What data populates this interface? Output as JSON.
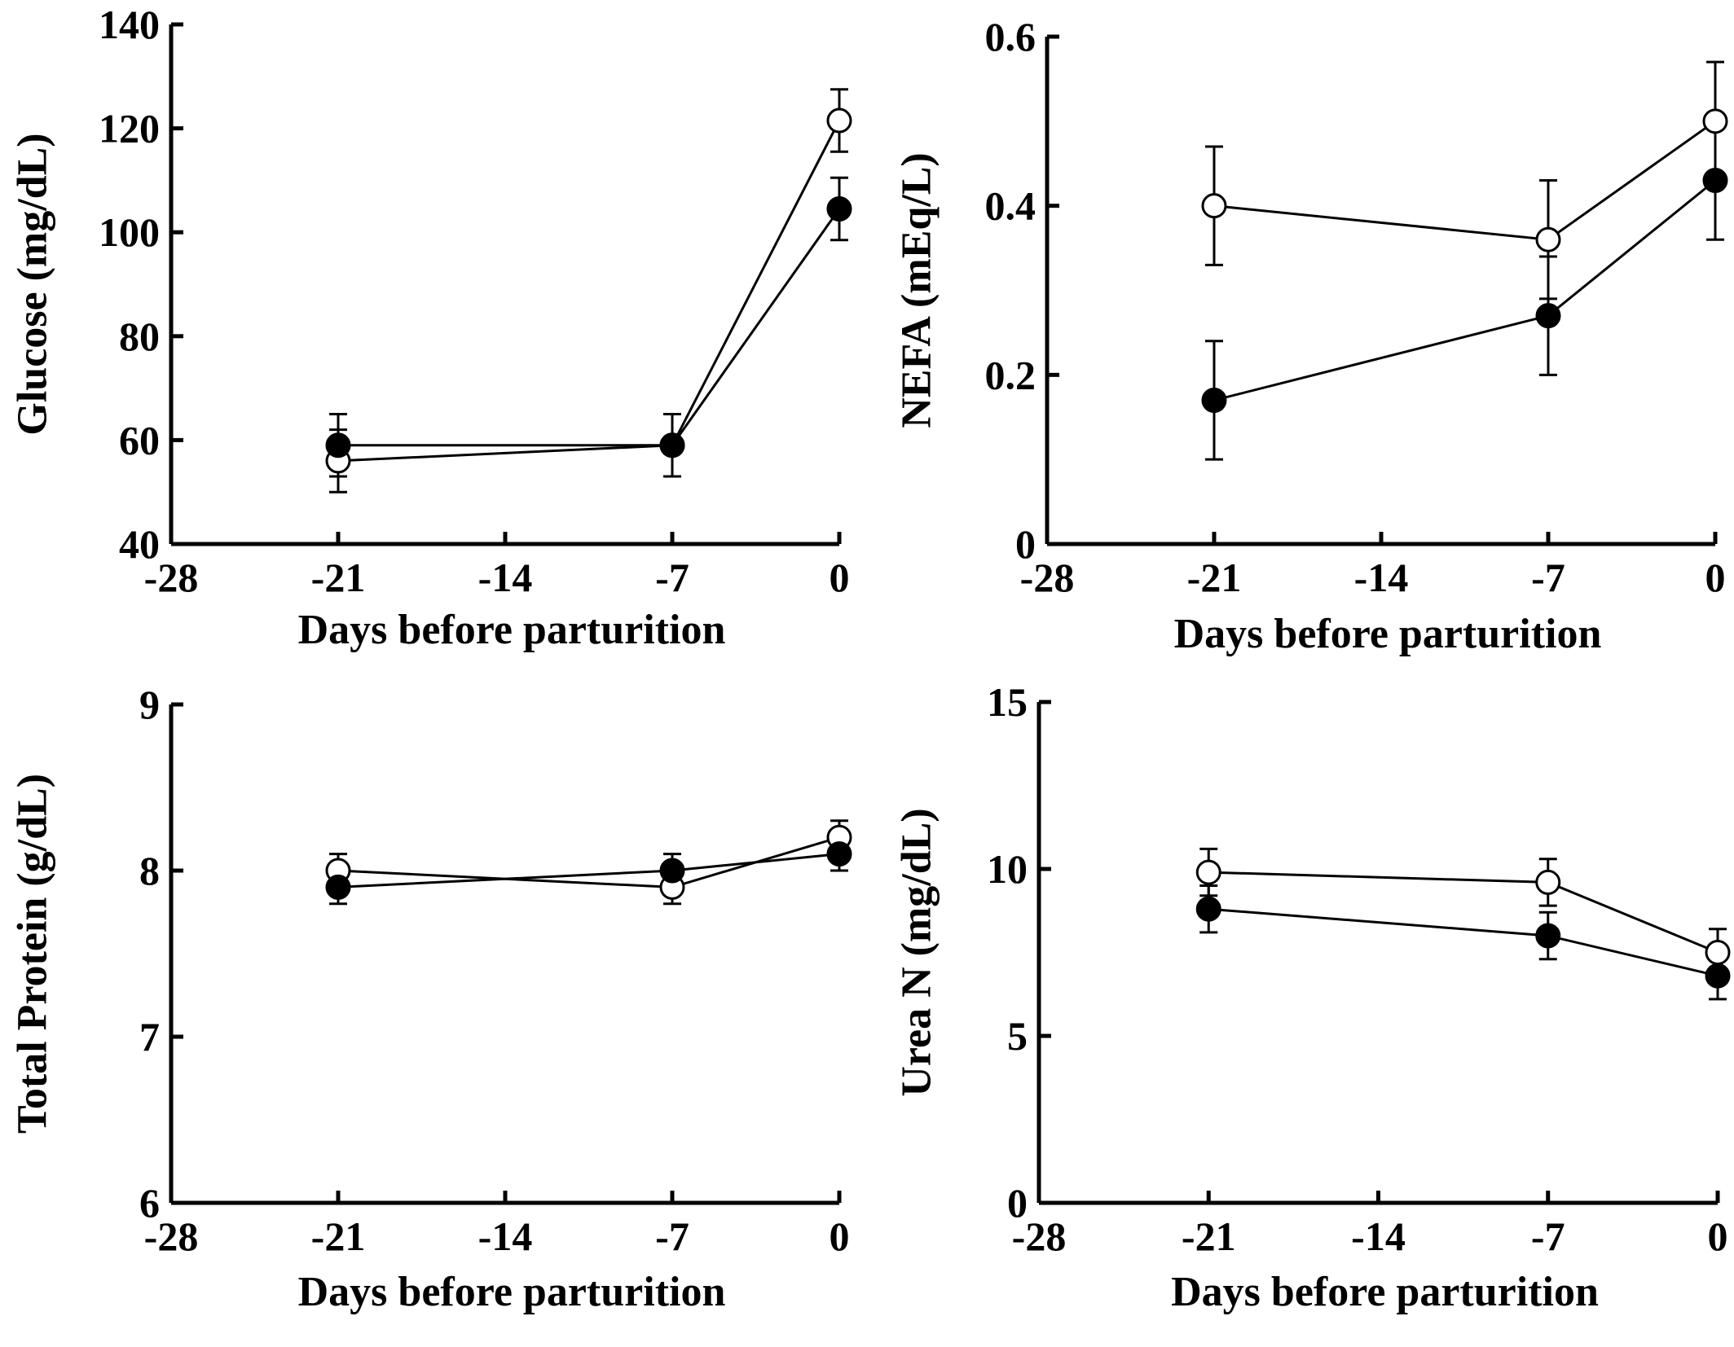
{
  "chart_data": [
    {
      "type": "line",
      "title": "",
      "xlabel": "Days before parturition",
      "ylabel": "Glucose (mg/dL)",
      "xlim": [
        -28,
        0
      ],
      "ylim": [
        40,
        140
      ],
      "xticks": [
        -28,
        -21,
        -14,
        -7,
        0
      ],
      "xtick_labels": [
        "-28",
        "-21",
        "-14",
        "-7",
        "0"
      ],
      "yticks": [
        40,
        60,
        80,
        100,
        120,
        140
      ],
      "ytick_labels": [
        "40",
        "60",
        "80",
        "100",
        "120",
        "140"
      ],
      "x": [
        -21,
        -7,
        0
      ],
      "series": [
        {
          "marker": "open",
          "values": [
            56,
            59,
            121.5
          ],
          "errors": [
            6,
            6,
            6
          ]
        },
        {
          "marker": "filled",
          "values": [
            59,
            59,
            104.5
          ],
          "errors": [
            6,
            6,
            6
          ]
        }
      ]
    },
    {
      "type": "line",
      "title": "",
      "xlabel": "Days before parturition",
      "ylabel": "NEFA (mEq/L)",
      "xlim": [
        -28,
        0
      ],
      "ylim": [
        0,
        0.6
      ],
      "xticks": [
        -28,
        -21,
        -14,
        -7,
        0
      ],
      "xtick_labels": [
        "-28",
        "-21",
        "-14",
        "-7",
        "0"
      ],
      "yticks": [
        0,
        0.2,
        0.4,
        0.6
      ],
      "ytick_labels": [
        "0",
        "0.2",
        "0.4",
        "0.6"
      ],
      "x": [
        -21,
        -7,
        0
      ],
      "series": [
        {
          "marker": "open",
          "values": [
            0.4,
            0.36,
            0.5
          ],
          "errors": [
            0.07,
            0.07,
            0.07
          ]
        },
        {
          "marker": "filled",
          "values": [
            0.17,
            0.27,
            0.43
          ],
          "errors": [
            0.07,
            0.07,
            0.07
          ]
        }
      ]
    },
    {
      "type": "line",
      "title": "",
      "xlabel": "Days before parturition",
      "ylabel": "Total Protein (g/dL)",
      "xlim": [
        -28,
        0
      ],
      "ylim": [
        6,
        9
      ],
      "xticks": [
        -28,
        -21,
        -14,
        -7,
        0
      ],
      "xtick_labels": [
        "-28",
        "-21",
        "-14",
        "-7",
        "0"
      ],
      "yticks": [
        6,
        7,
        8,
        9
      ],
      "ytick_labels": [
        "6",
        "7",
        "8",
        "9"
      ],
      "x": [
        -21,
        -7,
        0
      ],
      "series": [
        {
          "marker": "open",
          "values": [
            8.0,
            7.9,
            8.2
          ],
          "errors": [
            0.1,
            0.1,
            0.1
          ]
        },
        {
          "marker": "filled",
          "values": [
            7.9,
            8.0,
            8.1
          ],
          "errors": [
            0.1,
            0.1,
            0.1
          ]
        }
      ]
    },
    {
      "type": "line",
      "title": "",
      "xlabel": "Days before parturition",
      "ylabel": "Urea N (mg/dL)",
      "xlim": [
        -28,
        0
      ],
      "ylim": [
        0,
        15
      ],
      "xticks": [
        -28,
        -21,
        -14,
        -7,
        0
      ],
      "xtick_labels": [
        "-28",
        "-21",
        "-14",
        "-7",
        "0"
      ],
      "yticks": [
        0,
        5,
        10,
        15
      ],
      "ytick_labels": [
        "0",
        "5",
        "10",
        "15"
      ],
      "x": [
        -21,
        -7,
        0
      ],
      "series": [
        {
          "marker": "open",
          "values": [
            9.9,
            9.6,
            7.5
          ],
          "errors": [
            0.7,
            0.7,
            0.7
          ]
        },
        {
          "marker": "filled",
          "values": [
            8.8,
            8.0,
            6.8
          ],
          "errors": [
            0.7,
            0.7,
            0.7
          ]
        }
      ]
    }
  ]
}
